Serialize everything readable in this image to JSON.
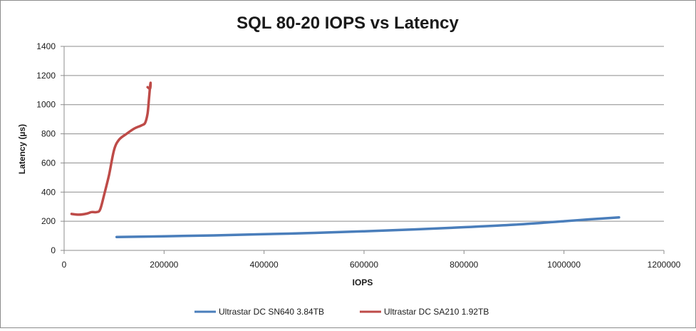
{
  "chart_data": {
    "type": "scatter",
    "title": "SQL 80-20 IOPS vs Latency",
    "xlabel": "IOPS",
    "ylabel": "Latency (µs)",
    "xlim": [
      0,
      1200000
    ],
    "ylim": [
      0,
      1400
    ],
    "x_ticks": [
      "0",
      "200000",
      "400000",
      "600000",
      "800000",
      "1000000",
      "1200000"
    ],
    "y_ticks": [
      "0",
      "200",
      "400",
      "600",
      "800",
      "1000",
      "1200",
      "1400"
    ],
    "grid": "horizontal",
    "legend_position": "bottom",
    "series": [
      {
        "name": "Ultrastar DC SN640 3.84TB",
        "color": "#4a7ebb",
        "points": [
          [
            105000,
            92
          ],
          [
            200000,
            97
          ],
          [
            300000,
            103
          ],
          [
            400000,
            111
          ],
          [
            500000,
            120
          ],
          [
            600000,
            131
          ],
          [
            700000,
            144
          ],
          [
            800000,
            159
          ],
          [
            900000,
            176
          ],
          [
            1000000,
            200
          ],
          [
            1050000,
            213
          ],
          [
            1110000,
            226
          ]
        ]
      },
      {
        "name": "Ultrastar DC SA210 1.92TB",
        "color": "#be4b48",
        "points": [
          [
            15000,
            250
          ],
          [
            30000,
            245
          ],
          [
            45000,
            252
          ],
          [
            55000,
            263
          ],
          [
            65000,
            263
          ],
          [
            72000,
            280
          ],
          [
            80000,
            380
          ],
          [
            90000,
            520
          ],
          [
            100000,
            690
          ],
          [
            110000,
            760
          ],
          [
            125000,
            800
          ],
          [
            140000,
            835
          ],
          [
            155000,
            858
          ],
          [
            162000,
            875
          ],
          [
            167000,
            940
          ],
          [
            170000,
            1050
          ],
          [
            172000,
            1125
          ],
          [
            173000,
            1150
          ],
          [
            172000,
            1110
          ],
          [
            167000,
            1120
          ]
        ]
      }
    ]
  }
}
